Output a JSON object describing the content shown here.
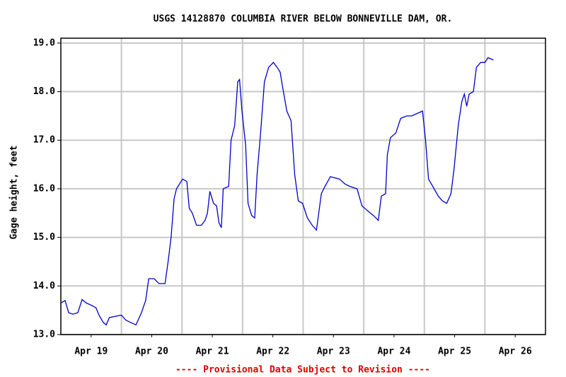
{
  "chart_data": {
    "type": "line",
    "title": "USGS 14128870 COLUMBIA RIVER BELOW BONNEVILLE DAM, OR.",
    "y_label": "Gage height, feet",
    "footer": "---- Provisional Data Subject to Revision ----",
    "grid": true,
    "xlim": [
      0,
      8
    ],
    "ylim": [
      13,
      19.1
    ],
    "xticks": [
      {
        "value": 0.5,
        "label": "Apr 19"
      },
      {
        "value": 1.5,
        "label": "Apr 20"
      },
      {
        "value": 2.5,
        "label": "Apr 21"
      },
      {
        "value": 3.5,
        "label": "Apr 22"
      },
      {
        "value": 4.5,
        "label": "Apr 23"
      },
      {
        "value": 5.5,
        "label": "Apr 24"
      },
      {
        "value": 6.5,
        "label": "Apr 25"
      },
      {
        "value": 7.5,
        "label": "Apr 26"
      }
    ],
    "x_gridlines": [
      1,
      2,
      3,
      4,
      5,
      6,
      7
    ],
    "yticks": [
      {
        "value": 13,
        "label": "13.0"
      },
      {
        "value": 14,
        "label": "14.0"
      },
      {
        "value": 15,
        "label": "15.0"
      },
      {
        "value": 16,
        "label": "16.0"
      },
      {
        "value": 17,
        "label": "17.0"
      },
      {
        "value": 18,
        "label": "18.0"
      },
      {
        "value": 19,
        "label": "19.0"
      }
    ],
    "series": [
      {
        "color": "#0000cc",
        "x": [
          0,
          0.07,
          0.13,
          0.2,
          0.28,
          0.35,
          0.42,
          0.51,
          0.58,
          0.63,
          0.7,
          0.75,
          0.8,
          0.92,
          1.0,
          1.07,
          1.15,
          1.24,
          1.33,
          1.4,
          1.45,
          1.54,
          1.62,
          1.72,
          1.77,
          1.82,
          1.87,
          1.91,
          2.01,
          2.08,
          2.12,
          2.17,
          2.24,
          2.32,
          2.38,
          2.42,
          2.46,
          2.52,
          2.57,
          2.61,
          2.65,
          2.68,
          2.77,
          2.81,
          2.87,
          2.92,
          2.95,
          2.99,
          3.05,
          3.09,
          3.15,
          3.2,
          3.24,
          3.3,
          3.36,
          3.43,
          3.51,
          3.57,
          3.62,
          3.66,
          3.73,
          3.8,
          3.86,
          3.92,
          3.99,
          4.07,
          4.15,
          4.22,
          4.3,
          4.36,
          4.45,
          4.6,
          4.69,
          4.77,
          4.89,
          4.97,
          5.06,
          5.16,
          5.24,
          5.29,
          5.36,
          5.39,
          5.44,
          5.53,
          5.61,
          5.71,
          5.79,
          5.88,
          5.97,
          6.02,
          6.07,
          6.14,
          6.23,
          6.3,
          6.37,
          6.44,
          6.49,
          6.56,
          6.62,
          6.66,
          6.7,
          6.74,
          6.81,
          6.86,
          6.93,
          7.0,
          7.05,
          7.14
        ],
        "values": [
          13.65,
          13.7,
          13.45,
          13.42,
          13.45,
          13.72,
          13.65,
          13.6,
          13.55,
          13.4,
          13.25,
          13.2,
          13.35,
          13.38,
          13.4,
          13.3,
          13.25,
          13.2,
          13.45,
          13.7,
          14.15,
          14.15,
          14.05,
          14.05,
          14.5,
          15.0,
          15.8,
          16.0,
          16.2,
          16.15,
          15.6,
          15.5,
          15.25,
          15.25,
          15.35,
          15.5,
          15.95,
          15.7,
          15.65,
          15.3,
          15.2,
          16.0,
          16.05,
          17.0,
          17.3,
          18.2,
          18.25,
          17.6,
          16.9,
          15.7,
          15.45,
          15.4,
          16.3,
          17.2,
          18.2,
          18.5,
          18.6,
          18.5,
          18.4,
          18.1,
          17.6,
          17.4,
          16.3,
          15.75,
          15.7,
          15.4,
          15.25,
          15.15,
          15.9,
          16.05,
          16.25,
          16.2,
          16.1,
          16.05,
          16.0,
          15.65,
          15.55,
          15.45,
          15.35,
          15.85,
          15.9,
          16.7,
          17.05,
          17.15,
          17.45,
          17.5,
          17.5,
          17.55,
          17.6,
          17.0,
          16.2,
          16.05,
          15.85,
          15.75,
          15.7,
          15.9,
          16.4,
          17.3,
          17.8,
          17.95,
          17.7,
          17.95,
          18.0,
          18.5,
          18.6,
          18.6,
          18.7,
          18.65
        ]
      }
    ]
  }
}
